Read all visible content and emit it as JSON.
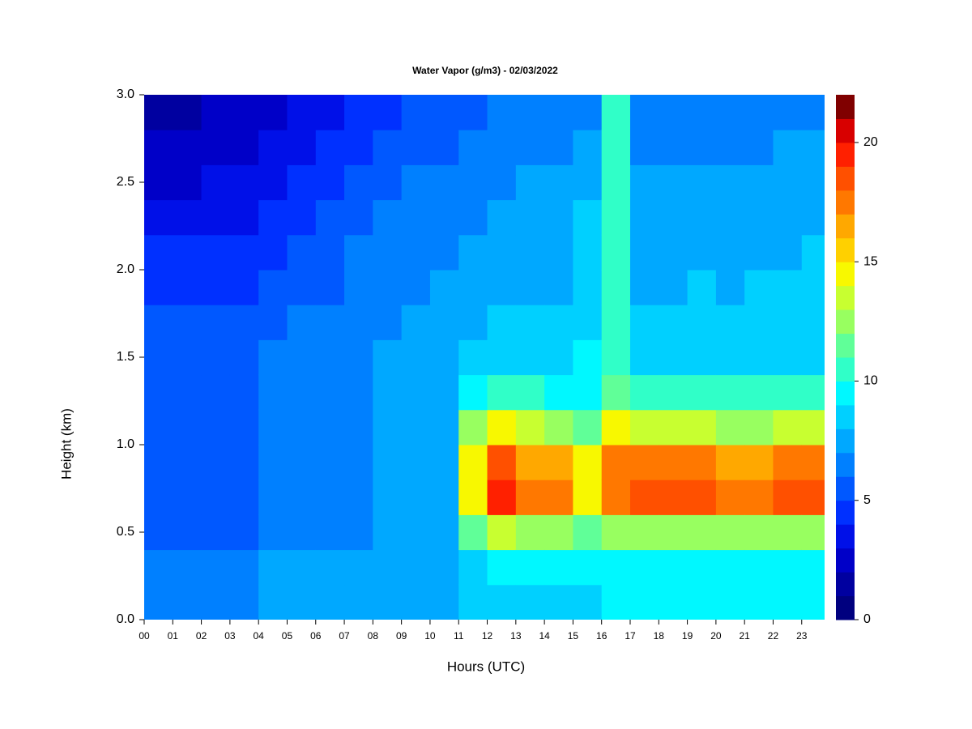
{
  "chart_data": {
    "type": "heatmap",
    "title": "Water Vapor (g/m3) - 02/03/2022",
    "x_label": "Hours (UTC)",
    "y_label": "Height (km)",
    "x": [
      0.5,
      1.5,
      2.5,
      3.5,
      4.5,
      5.5,
      6.5,
      7.5,
      8.5,
      9.5,
      10.5,
      11.5,
      12.5,
      13.5,
      14.5,
      15.5,
      16.5,
      17.5,
      18.5,
      19.5,
      20.5,
      21.5,
      22.5,
      23.5
    ],
    "y": [
      0.1,
      0.3,
      0.5,
      0.7,
      0.9,
      1.1,
      1.3,
      1.5,
      1.7,
      1.9,
      2.1,
      2.3,
      2.5,
      2.7,
      2.9
    ],
    "z": [
      [
        6,
        6,
        5,
        5,
        5,
        5,
        5,
        5,
        5,
        4,
        4,
        3,
        2.5,
        2,
        1.5
      ],
      [
        6,
        6,
        5,
        5,
        5,
        5,
        5,
        5,
        5,
        4,
        4,
        3,
        2.5,
        2,
        1.5
      ],
      [
        6,
        6,
        5,
        5,
        5,
        5,
        5,
        5,
        5,
        4,
        4,
        3.5,
        3,
        2.5,
        2
      ],
      [
        6,
        6.5,
        5,
        5,
        5,
        5.5,
        5.5,
        5.5,
        5,
        4.5,
        4,
        3.5,
        3,
        2.5,
        2
      ],
      [
        7,
        7.5,
        6,
        6,
        6,
        6,
        6,
        6,
        5.5,
        5,
        4.5,
        4,
        3.5,
        3,
        2.5
      ],
      [
        7,
        7.5,
        6,
        6,
        6,
        6,
        6,
        6,
        6,
        5,
        5,
        4.5,
        4,
        3.5,
        3
      ],
      [
        7.5,
        7.5,
        6.5,
        6.5,
        6.5,
        6.5,
        6.5,
        6.5,
        6,
        5.5,
        5,
        5,
        4.5,
        4,
        3.5
      ],
      [
        7.5,
        7.5,
        6.5,
        6.5,
        6.5,
        6.5,
        6.5,
        6.5,
        6.5,
        6,
        6,
        5.5,
        5,
        4.5,
        4
      ],
      [
        7.5,
        7.5,
        7,
        7,
        7,
        7,
        7,
        7,
        6.5,
        6.5,
        6,
        6,
        5.5,
        5,
        4.5
      ],
      [
        7.5,
        7.5,
        7,
        7,
        7,
        7,
        7,
        7,
        7,
        6.5,
        6.5,
        6,
        6,
        5.5,
        5
      ],
      [
        7.5,
        7.5,
        7.5,
        7.5,
        7.5,
        7.5,
        7,
        7,
        7,
        7,
        6.5,
        6.5,
        6,
        5.5,
        5
      ],
      [
        8.5,
        8.5,
        11,
        15,
        15,
        12,
        9,
        8,
        7.5,
        7,
        7,
        6.5,
        6,
        6,
        5.5
      ],
      [
        8.5,
        9,
        13,
        19,
        18,
        14,
        10,
        8.5,
        8,
        7.5,
        7,
        7,
        6.5,
        6.5,
        6
      ],
      [
        8.5,
        9,
        12,
        17,
        16,
        13,
        10,
        8.5,
        8,
        7.5,
        7,
        7,
        7,
        6.5,
        6
      ],
      [
        8.5,
        9,
        12,
        17,
        16,
        12,
        9.5,
        8.5,
        8,
        7.5,
        7,
        7,
        7,
        6.5,
        6
      ],
      [
        8.5,
        9,
        11,
        14,
        14,
        11,
        9,
        9,
        8.5,
        8,
        8,
        8,
        7.5,
        7,
        6.5
      ],
      [
        9,
        9,
        12,
        17,
        17,
        14,
        11,
        10,
        10,
        10,
        10,
        10,
        10,
        10,
        10
      ],
      [
        9,
        9,
        12,
        18,
        17,
        13,
        10,
        8.5,
        8,
        7.5,
        7.5,
        7,
        7,
        6.5,
        6
      ],
      [
        9,
        9,
        12,
        18,
        17,
        13,
        10,
        8.5,
        8,
        7.5,
        7.5,
        7,
        7,
        6.5,
        6
      ],
      [
        9,
        9,
        12,
        18,
        17,
        13,
        10,
        8.5,
        8,
        8,
        7.5,
        7,
        7,
        6.5,
        6
      ],
      [
        9,
        9,
        12,
        17,
        16,
        12,
        10,
        8.5,
        8,
        7.5,
        7.5,
        7,
        7,
        6.5,
        6
      ],
      [
        9,
        9,
        12,
        17,
        16,
        12,
        10,
        8.5,
        8,
        8,
        7.5,
        7,
        7,
        6.5,
        6
      ],
      [
        9,
        9,
        12,
        18,
        17,
        13,
        10,
        8.5,
        8,
        8,
        7.5,
        7.5,
        7,
        7,
        6.5
      ],
      [
        9,
        9,
        12,
        18,
        17,
        13,
        10,
        8.5,
        8,
        8,
        8,
        7.5,
        7,
        7,
        6.5
      ]
    ],
    "xlim": [
      0,
      23.8
    ],
    "xticks": [
      {
        "value": 0,
        "label": "00"
      },
      {
        "value": 1,
        "label": "01"
      },
      {
        "value": 2,
        "label": "02"
      },
      {
        "value": 3,
        "label": "03"
      },
      {
        "value": 4,
        "label": "04"
      },
      {
        "value": 5,
        "label": "05"
      },
      {
        "value": 6,
        "label": "06"
      },
      {
        "value": 7,
        "label": "07"
      },
      {
        "value": 8,
        "label": "08"
      },
      {
        "value": 9,
        "label": "09"
      },
      {
        "value": 10,
        "label": "10"
      },
      {
        "value": 11,
        "label": "11"
      },
      {
        "value": 12,
        "label": "12"
      },
      {
        "value": 13,
        "label": "13"
      },
      {
        "value": 14,
        "label": "14"
      },
      {
        "value": 15,
        "label": "15"
      },
      {
        "value": 16,
        "label": "16"
      },
      {
        "value": 17,
        "label": "17"
      },
      {
        "value": 18,
        "label": "18"
      },
      {
        "value": 19,
        "label": "19"
      },
      {
        "value": 20,
        "label": "20"
      },
      {
        "value": 21,
        "label": "21"
      },
      {
        "value": 22,
        "label": "22"
      },
      {
        "value": 23,
        "label": "23"
      }
    ],
    "ylim": [
      0,
      3
    ],
    "yticks": [
      {
        "value": 0,
        "label": "0.0"
      },
      0.5,
      {
        "value": 1,
        "label": "1.0"
      },
      1.5,
      {
        "value": 2,
        "label": "2.0"
      },
      2.5,
      {
        "value": 3,
        "label": "3.0"
      }
    ],
    "zlim": [
      0,
      22
    ],
    "zticks": [
      0,
      5,
      10,
      15,
      20
    ],
    "colors": [
      "#00007f",
      "#0000a0",
      "#0000c8",
      "#0010e8",
      "#0030ff",
      "#0058ff",
      "#0080ff",
      "#00a8ff",
      "#00d0ff",
      "#00f8ff",
      "#30ffc8",
      "#60ff98",
      "#98ff60",
      "#c8ff30",
      "#f8f800",
      "#ffd000",
      "#ffa800",
      "#ff7800",
      "#ff5000",
      "#ff2000",
      "#d80000",
      "#800000"
    ]
  }
}
